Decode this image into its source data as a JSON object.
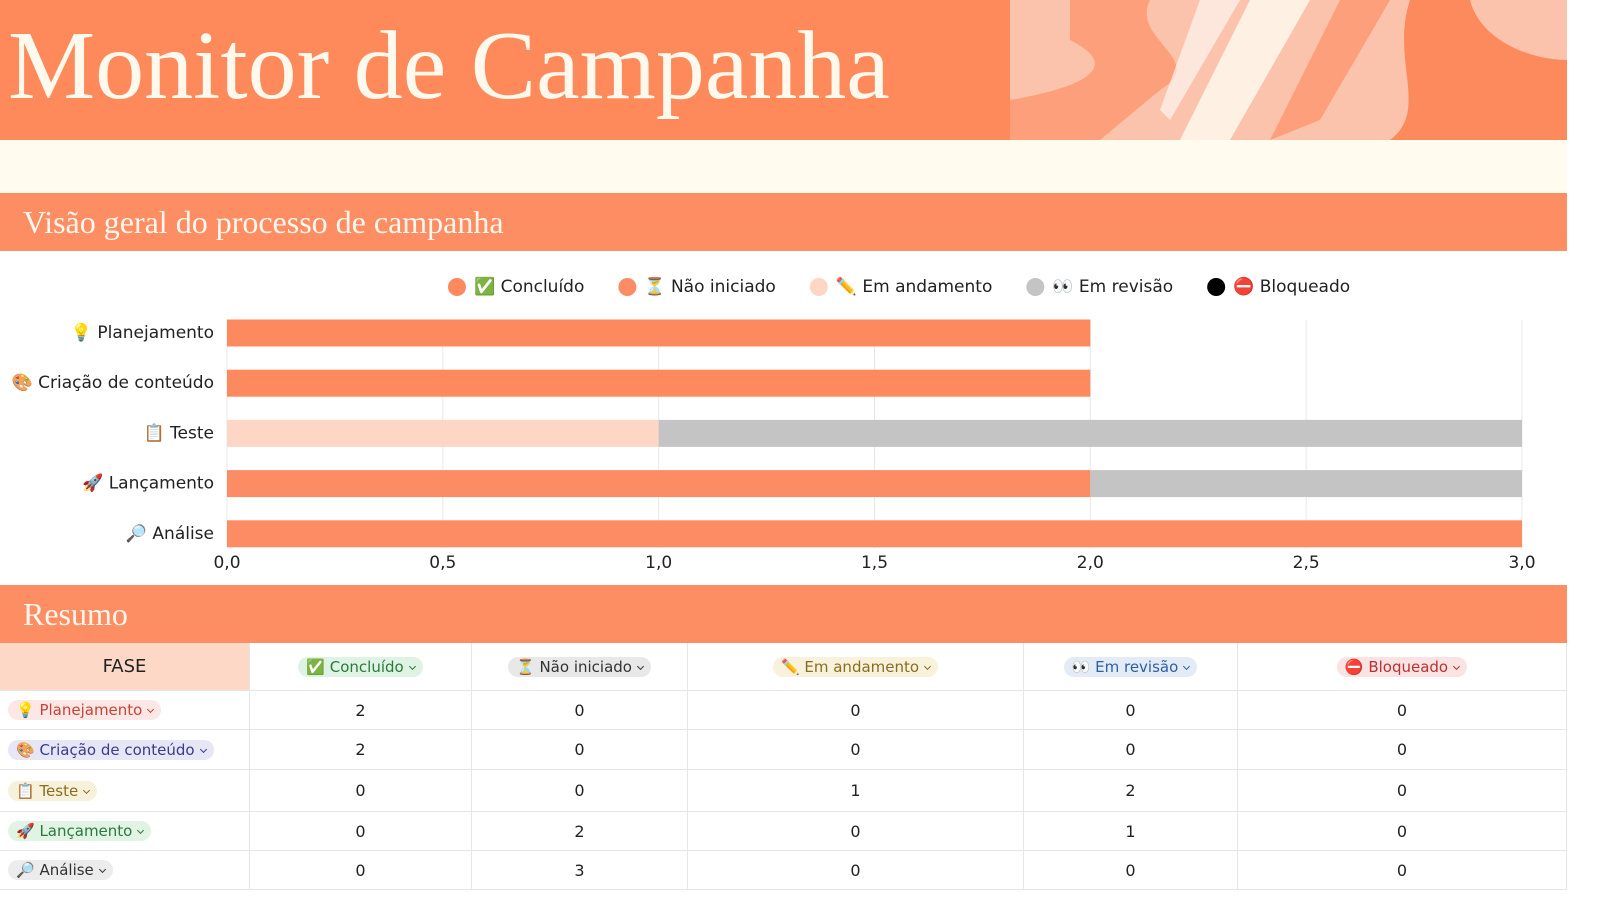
{
  "header": {
    "title": "Monitor de Campanha"
  },
  "sections": {
    "overview": "Visão geral do processo de campanha",
    "summary": "Resumo"
  },
  "chart_data": {
    "type": "bar",
    "orientation": "horizontal",
    "stacked": true,
    "categories": [
      "💡 Planejamento",
      "🎨 Criação de conteúdo",
      "📋 Teste",
      "🚀 Lançamento",
      "🔎 Análise"
    ],
    "series": [
      {
        "name": "✅ Concluído",
        "color": "#fd8a5e",
        "values": [
          2,
          2,
          0,
          0,
          0
        ]
      },
      {
        "name": "⏳ Não iniciado",
        "color": "#fb8c63",
        "values": [
          0,
          0,
          0,
          2,
          3
        ]
      },
      {
        "name": "✏️ Em andamento",
        "color": "#fdd6c5",
        "values": [
          0,
          0,
          1,
          0,
          0
        ]
      },
      {
        "name": "👀 Em revisão",
        "color": "#c4c4c4",
        "values": [
          0,
          0,
          2,
          1,
          0
        ]
      },
      {
        "name": "⛔ Bloqueado",
        "color": "#000000",
        "values": [
          0,
          0,
          0,
          0,
          0
        ]
      }
    ],
    "xlim": [
      0,
      3
    ],
    "xticks": [
      {
        "value": 0,
        "label": "0,0"
      },
      {
        "value": 0.5,
        "label": "0,5"
      },
      {
        "value": 1,
        "label": "1,0"
      },
      {
        "value": 1.5,
        "label": "1,5"
      },
      {
        "value": 2,
        "label": "2,0"
      },
      {
        "value": 2.5,
        "label": "2,5"
      },
      {
        "value": 3,
        "label": "3,0"
      }
    ],
    "grid": true,
    "legend": "top"
  },
  "table": {
    "header": "FASE"
  }
}
